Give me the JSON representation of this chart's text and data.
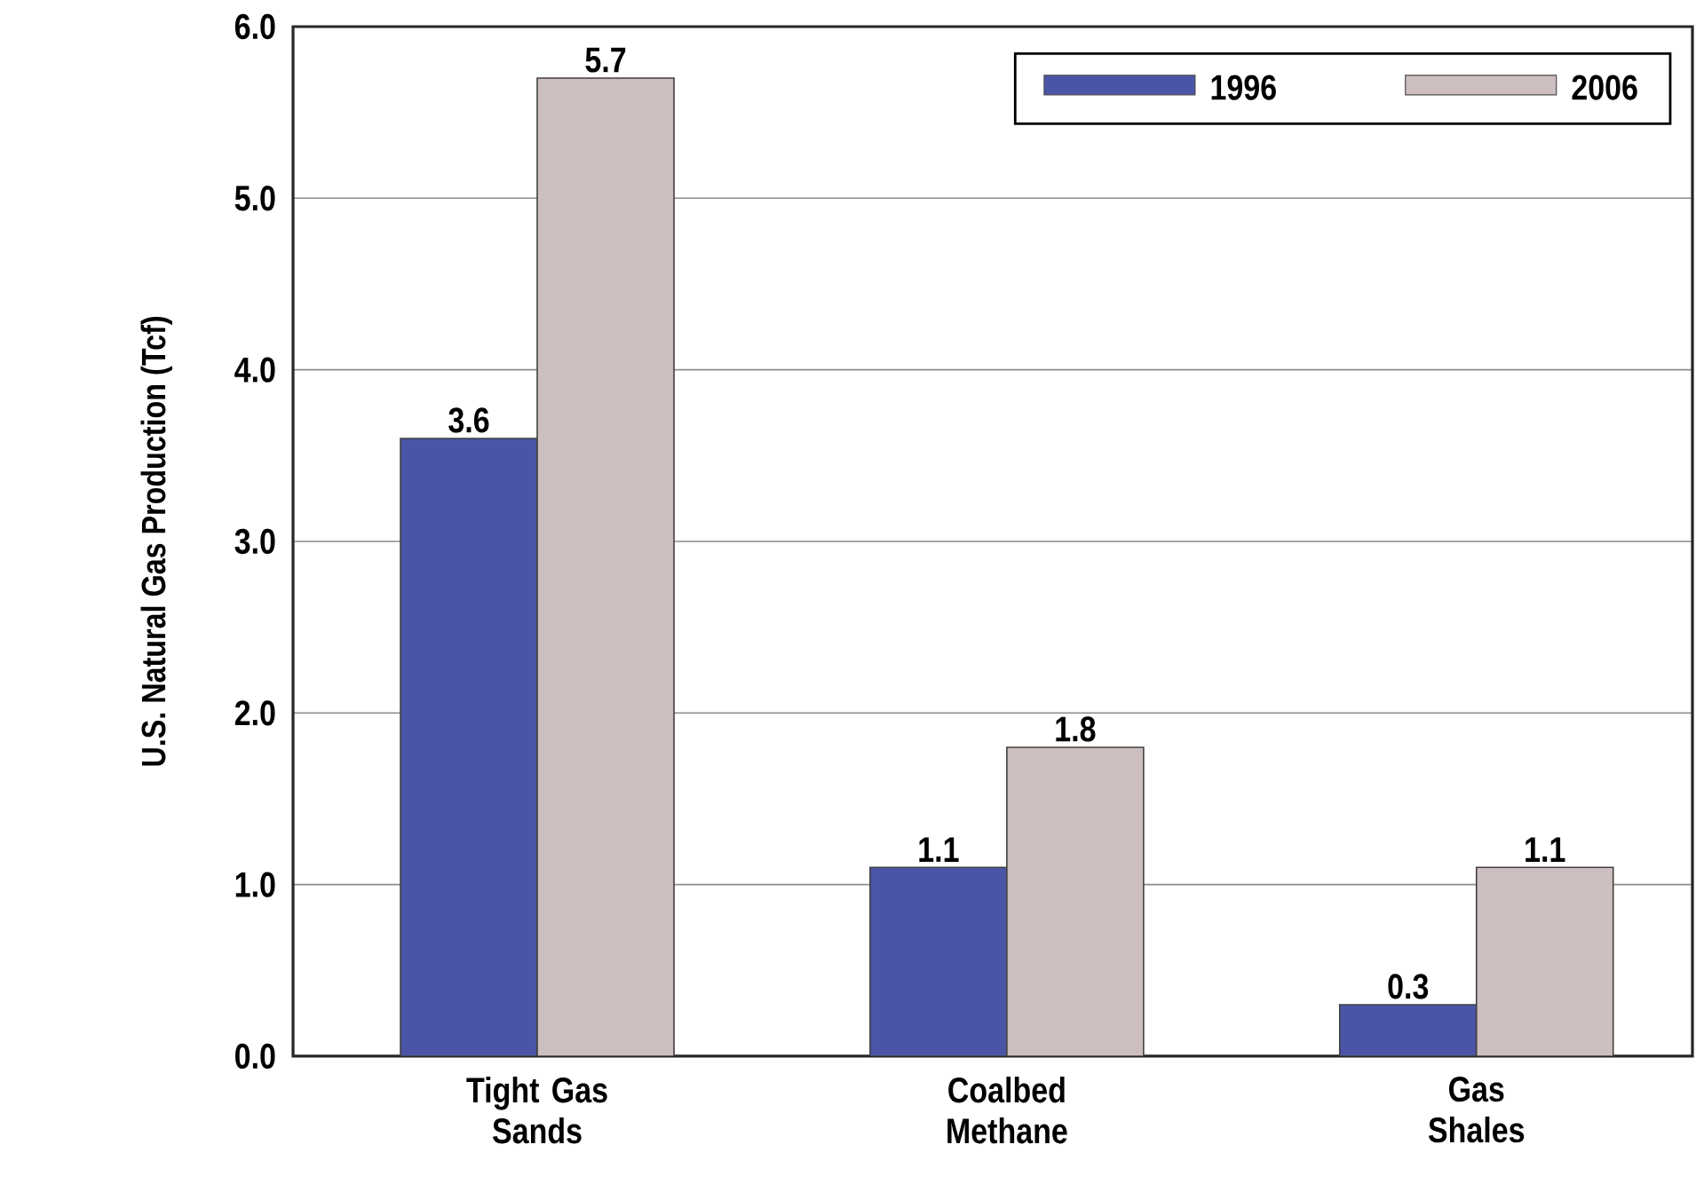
{
  "chart_data": {
    "type": "bar",
    "ylabel": "U.S. Natural Gas Production (Tcf)",
    "categories": [
      "Tight Gas Sands",
      "Coalbed Methane",
      "Gas Shales"
    ],
    "series": [
      {
        "name": "1996",
        "color": "#4b55a8",
        "values": [
          3.6,
          1.1,
          0.3
        ]
      },
      {
        "name": "2006",
        "color": "#cdbfbf",
        "values": [
          5.7,
          1.8,
          1.1
        ]
      }
    ],
    "ylim": [
      0,
      6
    ],
    "yticks": [
      {
        "value": 0,
        "label": "0.0"
      },
      {
        "value": 1,
        "label": "1.0"
      },
      {
        "value": 2,
        "label": "2.0"
      },
      {
        "value": 3,
        "label": "3.0"
      },
      {
        "value": 4,
        "label": "4.0"
      },
      {
        "value": 5,
        "label": "5.0"
      },
      {
        "value": 6,
        "label": "6.0"
      }
    ],
    "grid": "y",
    "legend": "top right",
    "data_labels": true
  }
}
